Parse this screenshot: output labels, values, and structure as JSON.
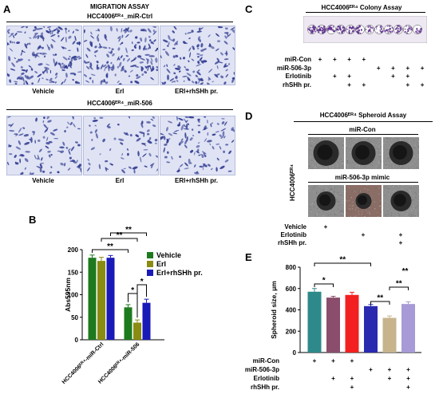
{
  "panel_a": {
    "label": "A",
    "title": "MIGRATION ASSAY",
    "group1": "HCC4006ᴱᴿ⁴_miR-Ctrl",
    "group2": "HCC4006ᴱᴿ⁴_miR-506",
    "cond1": "Vehicle",
    "cond2": "Erl",
    "cond3": "ERl+rhSHh pr.",
    "cell_color": "#2f3a8f",
    "bg_color": "#dfe3f4"
  },
  "panel_b": {
    "label": "B",
    "legend": [
      "Vehicle",
      "Erl",
      "Erl+rhSHh pr."
    ],
    "sig": [
      "**",
      "**",
      "**",
      "*",
      "*"
    ]
  },
  "panel_c": {
    "label": "C",
    "title": "HCC4006ᴱᴿ⁴ Colony Assay",
    "rows": [
      "miR-Con",
      "miR-506-3p",
      "Erlotinib",
      "rhSHh pr."
    ],
    "row_marks": [
      [
        "+",
        "+",
        "+",
        "+",
        "",
        "",
        "",
        ""
      ],
      [
        "",
        "",
        "",
        "",
        "+",
        "+",
        "+",
        "+"
      ],
      [
        "",
        "+",
        "+",
        "",
        "",
        "+",
        "+",
        ""
      ],
      [
        "",
        "",
        "+",
        "+",
        "",
        "",
        "+",
        "+"
      ]
    ]
  },
  "panel_d": {
    "label": "D",
    "title": "HCC4006ᴱᴿ⁴ Spheroid Assay",
    "group1": "miR-Con",
    "group2": "miR-506-3p mimic",
    "side_label": "HCC4006ᴱᴿ⁴",
    "rows": [
      "Vehicle",
      "Erlotinib",
      "rhSHh pr."
    ],
    "row_marks": [
      [
        "+",
        "",
        ""
      ],
      [
        "",
        "+",
        "+"
      ],
      [
        "",
        "",
        "+"
      ]
    ]
  },
  "panel_e": {
    "label": "E",
    "rows": [
      "miR-Con",
      "miR-506-3p",
      "Erlotinib",
      "rhSHh pr."
    ],
    "row_marks": [
      [
        "+",
        "+",
        "+",
        "",
        "",
        ""
      ],
      [
        "",
        "",
        "",
        "+",
        "+",
        "+"
      ],
      [
        "",
        "+",
        "+",
        "",
        "+",
        "+"
      ],
      [
        "",
        "",
        "+",
        "",
        "",
        "+"
      ]
    ],
    "sig": [
      "**",
      "*",
      "**",
      "**",
      "**"
    ]
  },
  "chart_data": [
    {
      "type": "bar",
      "panel": "B",
      "title": "",
      "ylabel": "Abs595nm",
      "xlabel": "",
      "categories": [
        "HCC4006ᴱᴿ⁴-miR-Ctrl",
        "HCC4006ᴱᴿ⁴-miR-506"
      ],
      "series": [
        {
          "name": "Vehicle",
          "values": [
            182,
            72
          ],
          "errors": [
            6,
            6
          ],
          "color": "#1e7a1e"
        },
        {
          "name": "Erl",
          "values": [
            175,
            38
          ],
          "errors": [
            8,
            6
          ],
          "color": "#8a8c12"
        },
        {
          "name": "Erl+rhSHh pr.",
          "values": [
            182,
            82
          ],
          "errors": [
            5,
            8
          ],
          "color": "#1a1ab8"
        }
      ],
      "ylim": [
        0,
        200
      ],
      "yticks": [
        0,
        50,
        100,
        150,
        200
      ],
      "legend": "top-right",
      "grid": false
    },
    {
      "type": "bar",
      "panel": "E",
      "title": "",
      "ylabel": "Spheroid size, μm",
      "xlabel": "",
      "categories": [
        "1",
        "2",
        "3",
        "4",
        "5",
        "6"
      ],
      "values": [
        570,
        515,
        540,
        435,
        325,
        455
      ],
      "errors": [
        30,
        12,
        25,
        15,
        18,
        20
      ],
      "colors": [
        "#2e8a8a",
        "#8a4e6c",
        "#f22020",
        "#2a2ab0",
        "#c7b48c",
        "#a89ad6"
      ],
      "ylim": [
        0,
        800
      ],
      "yticks": [
        0,
        200,
        400,
        600,
        800
      ],
      "legend": "none",
      "grid": false
    }
  ]
}
